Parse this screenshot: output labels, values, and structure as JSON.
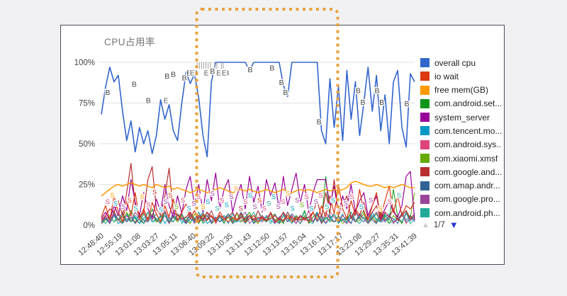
{
  "page": {
    "background": "#f1f1f4",
    "panel_border": "#4c4c5e"
  },
  "chart_data": {
    "type": "line",
    "title": "CPU占用率",
    "xlabel": "",
    "ylabel": "",
    "ylim": [
      0,
      100
    ],
    "grid": true,
    "legend_position": "right",
    "y_tick_labels": [
      "100%",
      "75%",
      "50%",
      "25%",
      "0%"
    ],
    "y_tick_values": [
      100,
      75,
      50,
      25,
      0
    ],
    "x_tick_labels": [
      "12:48:40",
      "12:55:19",
      "13:01:08",
      "13:03:27",
      "13:05:11",
      "13:06:40",
      "13:09:22",
      "13:10:35",
      "13:11:43",
      "13:12:50",
      "13:13:57",
      "13:15:04",
      "13:16:11",
      "13:17:17",
      "13:23:08",
      "13:29:27",
      "13:35:31",
      "13:41:39"
    ],
    "series": [
      {
        "name": "overall cpu",
        "color": "#3366CC",
        "width": 1.6,
        "y": [
          68,
          85,
          97,
          88,
          92,
          70,
          52,
          64,
          45,
          60,
          50,
          58,
          44,
          55,
          77,
          65,
          74,
          58,
          52,
          75,
          94,
          87,
          93,
          78,
          55,
          42,
          88,
          100,
          100,
          100,
          100,
          100,
          100,
          100,
          100,
          95,
          100,
          100,
          100,
          100,
          100,
          100,
          100,
          86,
          79,
          100,
          100,
          100,
          100,
          100,
          100,
          100,
          58,
          50,
          90,
          60,
          85,
          52,
          95,
          65,
          88,
          55,
          75,
          97,
          70,
          92,
          58,
          80,
          50,
          88,
          95,
          60,
          48,
          93,
          88
        ]
      },
      {
        "name": "io wait",
        "color": "#DC3912",
        "width": 1.2,
        "y": [
          5,
          12,
          3,
          18,
          8,
          2,
          15,
          6,
          20,
          4,
          10,
          3,
          14,
          7,
          2,
          12,
          5,
          16,
          3,
          8,
          13,
          4,
          9,
          2,
          7,
          3,
          6,
          2,
          8,
          4,
          2,
          5,
          3,
          7,
          2,
          4,
          6,
          2,
          5,
          3,
          8,
          2,
          4,
          3,
          6,
          2,
          5,
          3,
          4,
          2,
          8,
          3,
          12,
          5,
          18,
          7,
          25,
          10,
          4,
          15,
          6,
          22,
          8,
          3,
          12,
          20,
          5,
          15,
          24,
          8,
          18,
          6,
          12,
          10,
          14
        ]
      },
      {
        "name": "free mem(GB)",
        "color": "#FF9900",
        "width": 1.5,
        "y": [
          18,
          20,
          22,
          24,
          25,
          24,
          25,
          26,
          25,
          24,
          25,
          24,
          23,
          25,
          24,
          23,
          24,
          22,
          23,
          22,
          21,
          20,
          21,
          22,
          21,
          20,
          21,
          22,
          23,
          22,
          21,
          20,
          21,
          22,
          21,
          22,
          21,
          20,
          21,
          22,
          21,
          20,
          21,
          22,
          21,
          20,
          21,
          22,
          21,
          22,
          21,
          20,
          21,
          22,
          21,
          22,
          21,
          22,
          23,
          26,
          27,
          26,
          25,
          24,
          24,
          25,
          24,
          23,
          24,
          23,
          24,
          25,
          24,
          23,
          23
        ]
      },
      {
        "name": "com.android.set...",
        "color": "#109618",
        "width": 1,
        "y": [
          2,
          5,
          1,
          8,
          3,
          6,
          2,
          9,
          4,
          1,
          7,
          3,
          10,
          2,
          5,
          8,
          1,
          6,
          3,
          7,
          2,
          8,
          4,
          1,
          6,
          3,
          9,
          2,
          5,
          1,
          7,
          4,
          2,
          8,
          3,
          6,
          1,
          9,
          4,
          2,
          7,
          3,
          5,
          1,
          8,
          2,
          6,
          3,
          9,
          1,
          5,
          8,
          2,
          30,
          4,
          7,
          1,
          6,
          3,
          8,
          2,
          5,
          9,
          1,
          4,
          7,
          2,
          6,
          3,
          22,
          5,
          1,
          8,
          3,
          6
        ]
      },
      {
        "name": "system_server",
        "color": "#990099",
        "width": 1.2,
        "y": [
          4,
          8,
          3,
          12,
          6,
          18,
          9,
          28,
          14,
          6,
          20,
          10,
          4,
          16,
          8,
          25,
          12,
          5,
          18,
          7,
          22,
          30,
          12,
          25,
          8,
          28,
          15,
          32,
          10,
          22,
          28,
          8,
          18,
          25,
          10,
          30,
          14,
          24,
          8,
          28,
          18,
          26,
          10,
          30,
          12,
          22,
          32,
          14,
          25,
          8,
          20,
          28,
          28,
          28,
          12,
          24,
          6,
          18,
          10,
          25,
          8,
          15,
          20,
          6,
          12,
          18,
          4,
          10,
          15,
          8,
          5,
          12,
          30,
          33,
          3
        ]
      },
      {
        "name": "com.tencent.mo...",
        "color": "#0099C6",
        "width": 1,
        "y": [
          1,
          4,
          2,
          6,
          1,
          3,
          7,
          2,
          5,
          1,
          4,
          8,
          2,
          3,
          6,
          1,
          5,
          2,
          7,
          3,
          1,
          6,
          2,
          4,
          8,
          1,
          3,
          5,
          2,
          6,
          1,
          7,
          3,
          2,
          5,
          8,
          1,
          4,
          2,
          6,
          3,
          1,
          5,
          7,
          2,
          4,
          1,
          6,
          3,
          5,
          2,
          8,
          1,
          4,
          6,
          2,
          3,
          7,
          1,
          5,
          2,
          6,
          4,
          1,
          8,
          3,
          2,
          5,
          7,
          1,
          4,
          6,
          2,
          3,
          5
        ]
      },
      {
        "name": "com.android.sys...",
        "color": "#DD4477",
        "width": 1,
        "y": [
          2,
          6,
          1,
          9,
          3,
          5,
          2,
          7,
          1,
          4,
          8,
          2,
          6,
          3,
          1,
          9,
          4,
          2,
          7,
          5,
          1,
          8,
          3,
          6,
          2,
          4,
          9,
          1,
          5,
          3,
          7,
          2,
          8,
          4,
          1,
          6,
          3,
          9,
          2,
          5,
          7,
          1,
          4,
          8,
          2,
          6,
          1,
          5,
          3,
          9,
          2,
          7,
          4,
          1,
          8,
          5,
          2,
          6,
          3,
          1,
          9,
          4,
          7,
          2,
          5,
          1,
          8,
          3,
          6,
          2,
          4,
          7,
          1,
          5,
          3
        ]
      },
      {
        "name": "com.xiaomi.xmsf",
        "color": "#66AA00",
        "width": 1,
        "y": [
          1,
          3,
          6,
          2,
          4,
          1,
          8,
          3,
          2,
          6,
          1,
          4,
          7,
          2,
          3,
          8,
          1,
          5,
          2,
          6,
          3,
          1,
          7,
          4,
          2,
          8,
          1,
          3,
          6,
          2,
          5,
          1,
          7,
          2,
          4,
          8,
          3,
          1,
          6,
          2,
          5,
          7,
          1,
          3,
          8,
          2,
          4,
          1,
          6,
          3,
          2,
          7,
          1,
          5,
          3,
          2,
          6,
          1,
          4,
          8,
          2,
          3,
          7,
          1,
          5,
          2,
          8,
          4,
          1,
          6,
          3,
          2,
          7,
          5,
          20
        ]
      },
      {
        "name": "com.google.and...",
        "color": "#B82E2E",
        "width": 1.2,
        "y": [
          3,
          6,
          10,
          8,
          15,
          6,
          20,
          38,
          12,
          5,
          8,
          28,
          36,
          10,
          6,
          18,
          35,
          8,
          6,
          4,
          5,
          8,
          3,
          6,
          4,
          8,
          5,
          3,
          6,
          4,
          5,
          8,
          3,
          5,
          4,
          6,
          3,
          5,
          4,
          3,
          4,
          6,
          3,
          8,
          4,
          5,
          3,
          6,
          4,
          5,
          8,
          15,
          5,
          20,
          8,
          28,
          6,
          12,
          18,
          4,
          10,
          6,
          14,
          4,
          8,
          12,
          3,
          8,
          5,
          10,
          3,
          6,
          9,
          4,
          7
        ]
      },
      {
        "name": "com.amap.andr...",
        "color": "#316395",
        "width": 1,
        "y": [
          2,
          4,
          1,
          6,
          3,
          8,
          2,
          5,
          1,
          7,
          3,
          2,
          6,
          4,
          1,
          8,
          2,
          5,
          3,
          7,
          1,
          4,
          2,
          8,
          3,
          6,
          1,
          5,
          2,
          4,
          7,
          1,
          3,
          8,
          2,
          6,
          1,
          4,
          5,
          2,
          8,
          3,
          1,
          6,
          2,
          7,
          4,
          1,
          5,
          3,
          8,
          2,
          6,
          1,
          4,
          7,
          2,
          3,
          5,
          1,
          8,
          4,
          2,
          6,
          3,
          1,
          7,
          2,
          5,
          4,
          1,
          8,
          3,
          6,
          2
        ]
      },
      {
        "name": "com.google.pro...",
        "color": "#994499",
        "width": 1,
        "y": [
          1,
          5,
          2,
          7,
          3,
          1,
          6,
          2,
          8,
          4,
          1,
          5,
          3,
          7,
          2,
          6,
          1,
          8,
          3,
          4,
          2,
          7,
          1,
          5,
          3,
          8,
          2,
          4,
          6,
          1,
          7,
          3,
          2,
          5,
          8,
          1,
          4,
          2,
          6,
          3,
          7,
          1,
          5,
          2,
          8,
          4,
          1,
          6,
          3,
          5,
          2,
          7,
          1,
          8,
          4,
          2,
          5,
          3,
          1,
          6,
          2,
          7,
          4,
          1,
          5,
          8,
          2,
          3,
          6,
          1,
          4,
          2,
          7,
          3,
          5
        ]
      },
      {
        "name": "com.android.ph...",
        "color": "#22AA99",
        "width": 1,
        "y": [
          3,
          1,
          5,
          2,
          7,
          1,
          4,
          2,
          6,
          3,
          1,
          8,
          2,
          4,
          1,
          6,
          3,
          2,
          7,
          1,
          5,
          2,
          4,
          8,
          1,
          3,
          6,
          2,
          5,
          1,
          7,
          3,
          2,
          6,
          1,
          4,
          8,
          2,
          3,
          5,
          1,
          7,
          2,
          6,
          4,
          1,
          5,
          3,
          8,
          2,
          1,
          6,
          3,
          5,
          2,
          7,
          1,
          4,
          2,
          8,
          3,
          1,
          5,
          2,
          6,
          4,
          2,
          7,
          1,
          3,
          5,
          2,
          8,
          1,
          4
        ]
      }
    ],
    "draw_order": [
      3,
      5,
      6,
      7,
      9,
      10,
      11,
      8,
      4,
      1,
      2,
      0
    ],
    "annotations": {
      "b_labels": [
        [
          2,
          80
        ],
        [
          10.5,
          85
        ],
        [
          15,
          75
        ],
        [
          21,
          90
        ],
        [
          23,
          91
        ],
        [
          26.5,
          89
        ],
        [
          28,
          92
        ],
        [
          30,
          92
        ],
        [
          35.5,
          93
        ],
        [
          40,
          92
        ],
        [
          47.5,
          94
        ],
        [
          54.5,
          95
        ],
        [
          57.5,
          86
        ],
        [
          58.8,
          80
        ],
        [
          69.5,
          62
        ],
        [
          82,
          81
        ],
        [
          83.5,
          74
        ],
        [
          88,
          81
        ],
        [
          89.5,
          74
        ],
        [
          97.5,
          73
        ]
      ],
      "e_labels": [
        [
          20.6,
          75
        ],
        [
          29,
          92
        ],
        [
          33.5,
          92
        ],
        [
          37.5,
          92
        ],
        [
          39.2,
          92
        ]
      ],
      "event_ticks": [
        30.6,
        31.3,
        32,
        32.7,
        33.4,
        34.1,
        34.8,
        36.2,
        36.9,
        38.3,
        38.9
      ],
      "s_palette": [
        "#DD4477",
        "#0099C6",
        "#994499",
        "#FF9900",
        "#22AA99",
        "#B82E2E",
        "#66AA00",
        "#316395",
        "#DC3912"
      ],
      "s_labels": [
        [
          2,
          13,
          0
        ],
        [
          3.5,
          17,
          3
        ],
        [
          4.5,
          12,
          1
        ],
        [
          7,
          10,
          2
        ],
        [
          9,
          14,
          8
        ],
        [
          11,
          9,
          4
        ],
        [
          13,
          16,
          3
        ],
        [
          15,
          11,
          0
        ],
        [
          17,
          19,
          5
        ],
        [
          19,
          8,
          1
        ],
        [
          20.5,
          13,
          2
        ],
        [
          22,
          17,
          8
        ],
        [
          24,
          10,
          6
        ],
        [
          26,
          14,
          0
        ],
        [
          28,
          9,
          1
        ],
        [
          29.5,
          12,
          2
        ],
        [
          31,
          16,
          0
        ],
        [
          32.5,
          10,
          3
        ],
        [
          34,
          13,
          1
        ],
        [
          35.5,
          18,
          2
        ],
        [
          37,
          9,
          4
        ],
        [
          38.5,
          14,
          0
        ],
        [
          40,
          11,
          1
        ],
        [
          41.5,
          16,
          2
        ],
        [
          43,
          21,
          3
        ],
        [
          44.5,
          9,
          5
        ],
        [
          46,
          13,
          0
        ],
        [
          47.5,
          17,
          1
        ],
        [
          49,
          10,
          2
        ],
        [
          50.5,
          14,
          8
        ],
        [
          52,
          9,
          0
        ],
        [
          53.5,
          12,
          4
        ],
        [
          55,
          16,
          1
        ],
        [
          56.5,
          10,
          2
        ],
        [
          58,
          13,
          0
        ],
        [
          59.5,
          18,
          3
        ],
        [
          61,
          9,
          1
        ],
        [
          62.5,
          14,
          2
        ],
        [
          64,
          11,
          6
        ],
        [
          65.5,
          16,
          0
        ],
        [
          67,
          9,
          1
        ],
        [
          68.5,
          13,
          2
        ],
        [
          70,
          17,
          0
        ],
        [
          72,
          10,
          4
        ],
        [
          74,
          14,
          1
        ],
        [
          76,
          9,
          5
        ],
        [
          78,
          12,
          2
        ],
        [
          80,
          16,
          0
        ],
        [
          83,
          10,
          1
        ],
        [
          86,
          14,
          2
        ],
        [
          89,
          9,
          3
        ],
        [
          92,
          13,
          0
        ],
        [
          95,
          17,
          4
        ]
      ]
    },
    "axis_color": "#444444",
    "grid_color": "#e2e2e2",
    "legend": {
      "page_label": "1/7",
      "up_arrow_color": "#c9c9ce",
      "down_arrow_color": "#2a35d4"
    }
  },
  "highlight": {
    "color": "#E8A23C",
    "from_time": "13:09:22",
    "to_time": "13:17:17"
  }
}
